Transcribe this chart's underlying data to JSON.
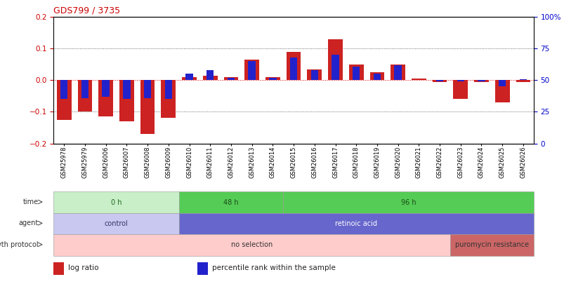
{
  "title": "GDS799 / 3735",
  "samples": [
    "GSM25978",
    "GSM25979",
    "GSM26006",
    "GSM26007",
    "GSM26008",
    "GSM26009",
    "GSM26010",
    "GSM26011",
    "GSM26012",
    "GSM26013",
    "GSM26014",
    "GSM26015",
    "GSM26016",
    "GSM26017",
    "GSM26018",
    "GSM26019",
    "GSM26020",
    "GSM26021",
    "GSM26022",
    "GSM26023",
    "GSM26024",
    "GSM26025",
    "GSM26026"
  ],
  "log_ratio": [
    -0.125,
    -0.1,
    -0.115,
    -0.13,
    -0.17,
    -0.12,
    0.01,
    0.015,
    0.01,
    0.065,
    0.01,
    0.09,
    0.035,
    0.13,
    0.05,
    0.025,
    0.05,
    0.005,
    -0.005,
    -0.06,
    -0.005,
    -0.07,
    -0.005
  ],
  "percentile_rank": [
    35,
    36,
    37,
    35,
    36,
    35,
    55,
    58,
    52,
    65,
    52,
    68,
    58,
    70,
    61,
    55,
    62,
    50,
    49,
    49,
    49,
    45,
    51
  ],
  "ylim_left": [
    -0.2,
    0.2
  ],
  "ylim_right": [
    0,
    100
  ],
  "yticks_left": [
    -0.2,
    -0.1,
    0.0,
    0.1,
    0.2
  ],
  "yticks_right": [
    0,
    25,
    50,
    75,
    100
  ],
  "ytick_labels_right": [
    "0",
    "25",
    "50",
    "75",
    "100%"
  ],
  "bar_color_red": "#cc2222",
  "bar_color_blue": "#2222cc",
  "zero_line_color": "#dd0000",
  "dotted_color": "#444444",
  "rows": [
    {
      "label": "time",
      "segments": [
        {
          "text": "0 h",
          "start": 0,
          "end": 6,
          "color": "#c8efc8",
          "text_color": "#226622"
        },
        {
          "text": "48 h",
          "start": 6,
          "end": 11,
          "color": "#55cc55",
          "text_color": "#1a4d1a"
        },
        {
          "text": "96 h",
          "start": 11,
          "end": 23,
          "color": "#55cc55",
          "text_color": "#1a4d1a"
        }
      ]
    },
    {
      "label": "agent",
      "segments": [
        {
          "text": "control",
          "start": 0,
          "end": 6,
          "color": "#c8c8f0",
          "text_color": "#333366"
        },
        {
          "text": "retinoic acid",
          "start": 6,
          "end": 23,
          "color": "#6666cc",
          "text_color": "#ffffff"
        }
      ]
    },
    {
      "label": "growth protocol",
      "segments": [
        {
          "text": "no selection",
          "start": 0,
          "end": 19,
          "color": "#ffcccc",
          "text_color": "#333333"
        },
        {
          "text": "puromycin resistance",
          "start": 19,
          "end": 23,
          "color": "#cc6666",
          "text_color": "#333333"
        }
      ]
    }
  ],
  "legend": [
    {
      "color": "#cc2222",
      "label": "log ratio"
    },
    {
      "color": "#2222cc",
      "label": "percentile rank within the sample"
    }
  ]
}
